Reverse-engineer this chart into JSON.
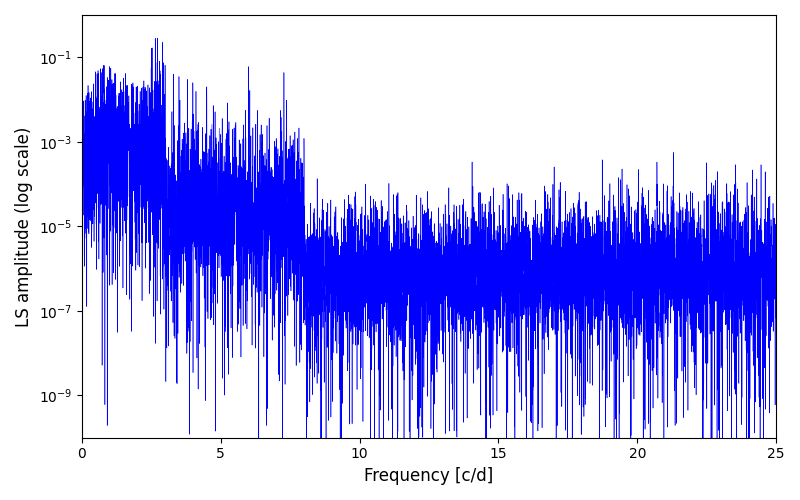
{
  "xlabel": "Frequency [c/d]",
  "ylabel": "LS amplitude (log scale)",
  "xlim": [
    0,
    25
  ],
  "line_color": "#0000FF",
  "linewidth": 0.4,
  "n_points": 8000,
  "freq_max": 25.0,
  "background_color": "#ffffff",
  "figsize": [
    8.0,
    5.0
  ],
  "dpi": 100,
  "seed": 12345,
  "yticks": [
    1e-09,
    1e-07,
    1e-05,
    0.001,
    0.1
  ],
  "ylim": [
    1e-10,
    1.0
  ]
}
